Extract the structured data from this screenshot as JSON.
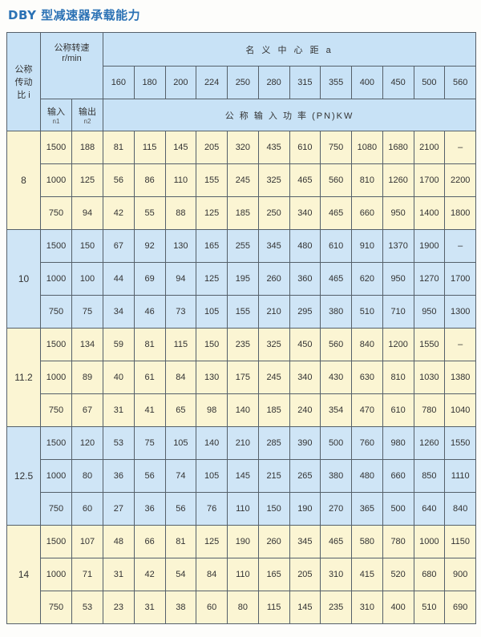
{
  "title": "DBY 型减速器承载能力",
  "header": {
    "ratio_label": [
      "公称",
      "传动",
      "比 i"
    ],
    "speed_label": "公称转速",
    "speed_unit": "r/min",
    "center_distance_label": "名 义 中 心 距 a",
    "center_distances": [
      "160",
      "180",
      "200",
      "224",
      "250",
      "280",
      "315",
      "355",
      "400",
      "450",
      "500",
      "560"
    ],
    "input_label": "输入",
    "input_sub": "n1",
    "output_label": "输出",
    "output_sub": "n2",
    "power_label": "公 称 输 入 功 率 (PN)KW"
  },
  "colors": {
    "group_a": "#fbf5d3",
    "group_b": "#cfe5f6",
    "header": "#c8e2f6",
    "title": "#2b72b5"
  },
  "groups": [
    {
      "ratio": "8",
      "rows": [
        {
          "n1": "1500",
          "n2": "188",
          "p": [
            "81",
            "115",
            "145",
            "205",
            "320",
            "435",
            "610",
            "750",
            "1080",
            "1680",
            "2100",
            "–"
          ]
        },
        {
          "n1": "1000",
          "n2": "125",
          "p": [
            "56",
            "86",
            "110",
            "155",
            "245",
            "325",
            "465",
            "560",
            "810",
            "1260",
            "1700",
            "2200"
          ]
        },
        {
          "n1": "750",
          "n2": "94",
          "p": [
            "42",
            "55",
            "88",
            "125",
            "185",
            "250",
            "340",
            "465",
            "660",
            "950",
            "1400",
            "1800"
          ]
        }
      ]
    },
    {
      "ratio": "10",
      "rows": [
        {
          "n1": "1500",
          "n2": "150",
          "p": [
            "67",
            "92",
            "130",
            "165",
            "255",
            "345",
            "480",
            "610",
            "910",
            "1370",
            "1900",
            "–"
          ]
        },
        {
          "n1": "1000",
          "n2": "100",
          "p": [
            "44",
            "69",
            "94",
            "125",
            "195",
            "260",
            "360",
            "465",
            "620",
            "950",
            "1270",
            "1700"
          ]
        },
        {
          "n1": "750",
          "n2": "75",
          "p": [
            "34",
            "46",
            "73",
            "105",
            "155",
            "210",
            "295",
            "380",
            "510",
            "710",
            "950",
            "1300"
          ]
        }
      ]
    },
    {
      "ratio": "11.2",
      "rows": [
        {
          "n1": "1500",
          "n2": "134",
          "p": [
            "59",
            "81",
            "115",
            "150",
            "235",
            "325",
            "450",
            "560",
            "840",
            "1200",
            "1550",
            "–"
          ]
        },
        {
          "n1": "1000",
          "n2": "89",
          "p": [
            "40",
            "61",
            "84",
            "130",
            "175",
            "245",
            "340",
            "430",
            "630",
            "810",
            "1030",
            "1380"
          ]
        },
        {
          "n1": "750",
          "n2": "67",
          "p": [
            "31",
            "41",
            "65",
            "98",
            "140",
            "185",
            "240",
            "354",
            "470",
            "610",
            "780",
            "1040"
          ]
        }
      ]
    },
    {
      "ratio": "12.5",
      "rows": [
        {
          "n1": "1500",
          "n2": "120",
          "p": [
            "53",
            "75",
            "105",
            "140",
            "210",
            "285",
            "390",
            "500",
            "760",
            "980",
            "1260",
            "1550"
          ]
        },
        {
          "n1": "1000",
          "n2": "80",
          "p": [
            "36",
            "56",
            "74",
            "105",
            "145",
            "215",
            "265",
            "380",
            "480",
            "660",
            "850",
            "1110"
          ]
        },
        {
          "n1": "750",
          "n2": "60",
          "p": [
            "27",
            "36",
            "56",
            "76",
            "110",
            "150",
            "190",
            "270",
            "365",
            "500",
            "640",
            "840"
          ]
        }
      ]
    },
    {
      "ratio": "14",
      "rows": [
        {
          "n1": "1500",
          "n2": "107",
          "p": [
            "48",
            "66",
            "81",
            "125",
            "190",
            "260",
            "345",
            "465",
            "580",
            "780",
            "1000",
            "1150"
          ]
        },
        {
          "n1": "1000",
          "n2": "71",
          "p": [
            "31",
            "42",
            "54",
            "84",
            "110",
            "165",
            "205",
            "310",
            "415",
            "520",
            "680",
            "900"
          ]
        },
        {
          "n1": "750",
          "n2": "53",
          "p": [
            "23",
            "31",
            "38",
            "60",
            "80",
            "115",
            "145",
            "235",
            "310",
            "400",
            "510",
            "690"
          ]
        }
      ]
    }
  ]
}
